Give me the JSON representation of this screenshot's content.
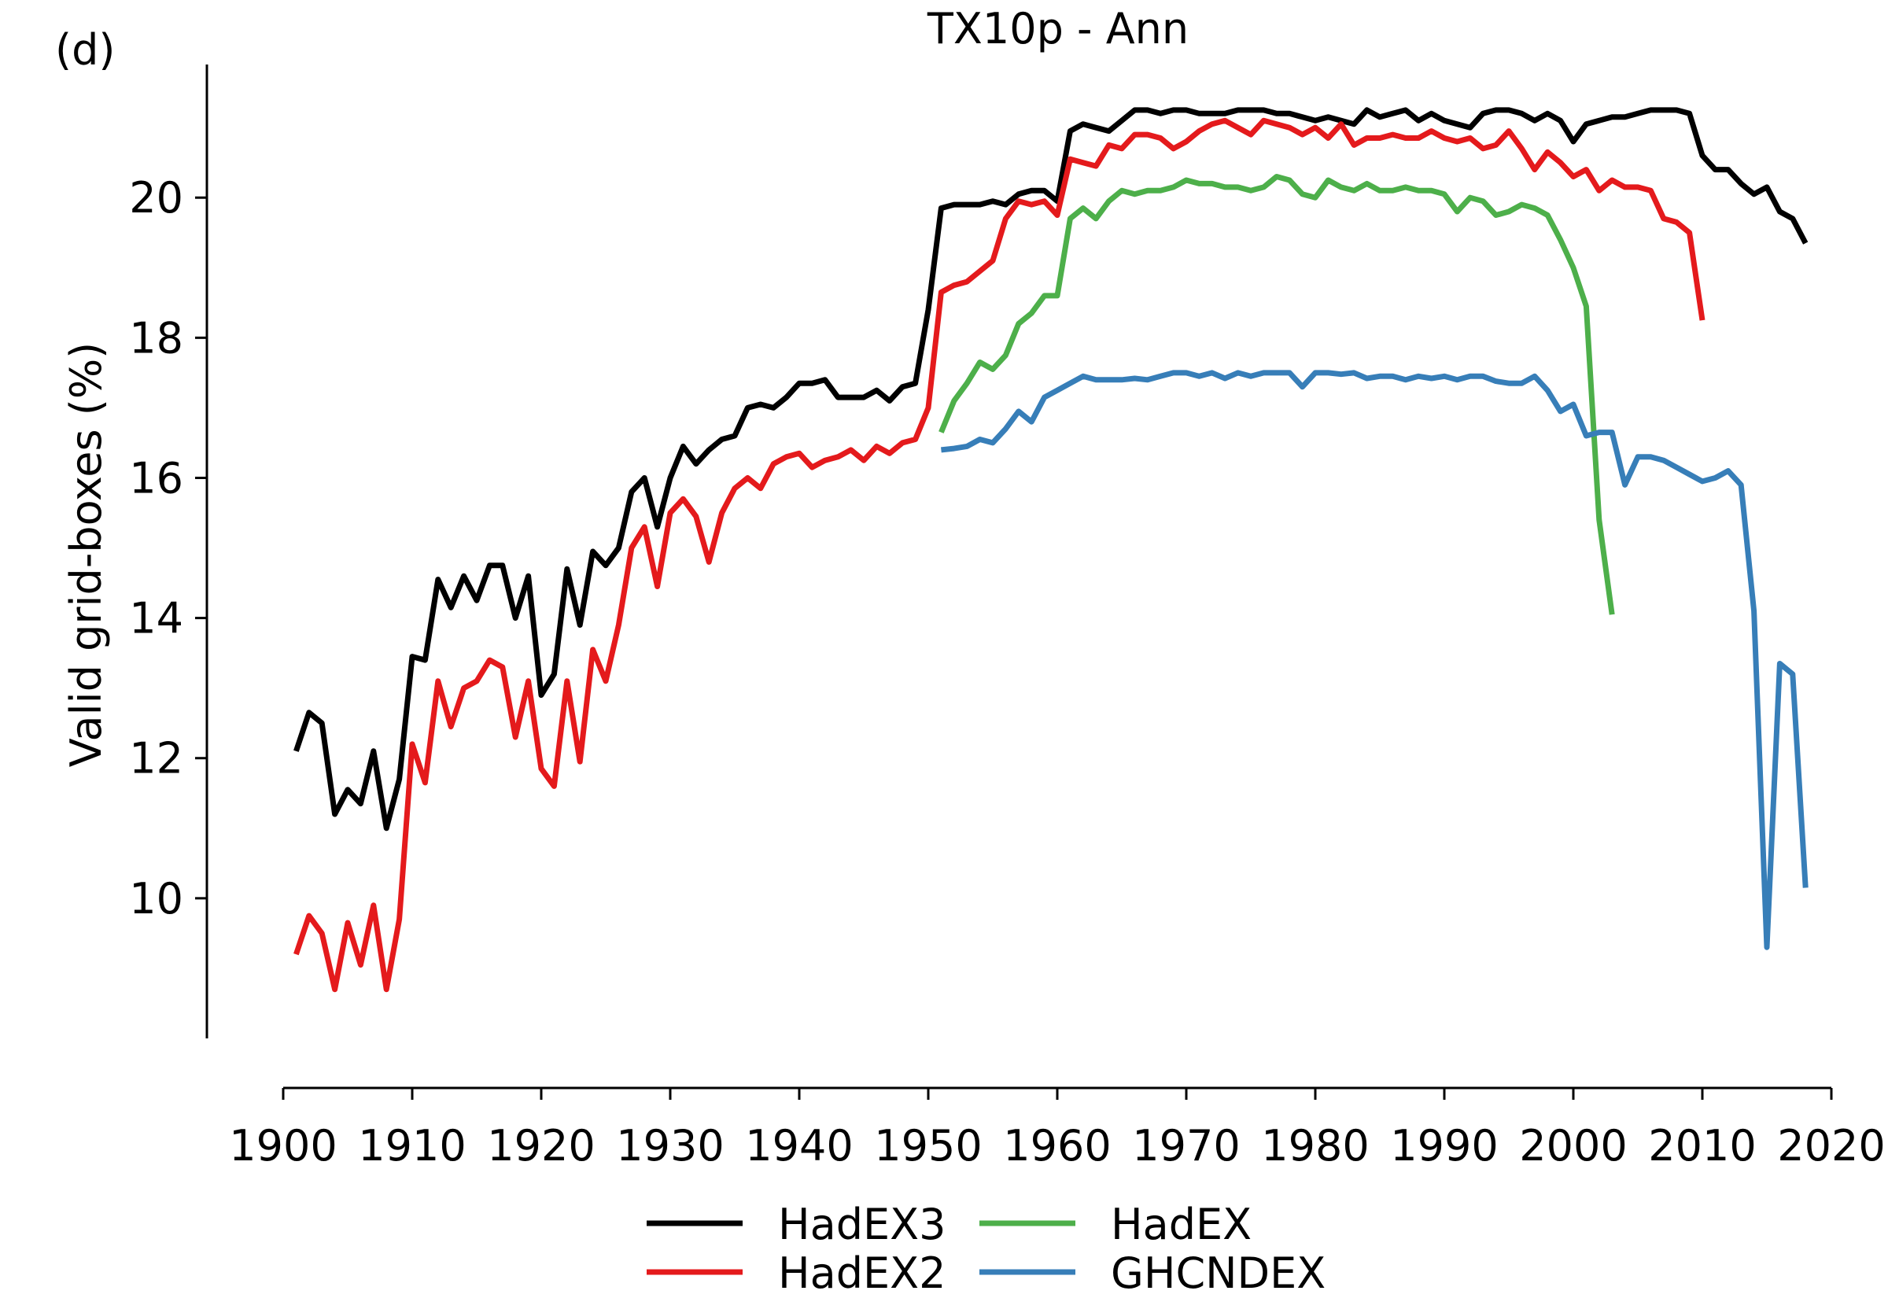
{
  "panel_label": "(d)",
  "chart_data": {
    "type": "line",
    "title": "TX10p - Ann",
    "xlabel": "",
    "ylabel": "Valid grid-boxes (%)",
    "xlim": [
      1900,
      2020
    ],
    "ylim": [
      8.0,
      21.9
    ],
    "xticks": [
      1900,
      1910,
      1920,
      1930,
      1940,
      1950,
      1960,
      1970,
      1980,
      1990,
      2000,
      2010,
      2020
    ],
    "yticks": [
      10,
      12,
      14,
      16,
      18,
      20
    ],
    "grid": false,
    "legend_position": "bottom",
    "series": [
      {
        "name": "HadEX3",
        "color": "#000000",
        "x": [
          1901,
          1902,
          1903,
          1904,
          1905,
          1906,
          1907,
          1908,
          1909,
          1910,
          1911,
          1912,
          1913,
          1914,
          1915,
          1916,
          1917,
          1918,
          1919,
          1920,
          1921,
          1922,
          1923,
          1924,
          1925,
          1926,
          1927,
          1928,
          1929,
          1930,
          1931,
          1932,
          1933,
          1934,
          1935,
          1936,
          1937,
          1938,
          1939,
          1940,
          1941,
          1942,
          1943,
          1944,
          1945,
          1946,
          1947,
          1948,
          1949,
          1950,
          1951,
          1952,
          1953,
          1954,
          1955,
          1956,
          1957,
          1958,
          1959,
          1960,
          1961,
          1962,
          1963,
          1964,
          1965,
          1966,
          1967,
          1968,
          1969,
          1970,
          1971,
          1972,
          1973,
          1974,
          1975,
          1976,
          1977,
          1978,
          1979,
          1980,
          1981,
          1982,
          1983,
          1984,
          1985,
          1986,
          1987,
          1988,
          1989,
          1990,
          1991,
          1992,
          1993,
          1994,
          1995,
          1996,
          1997,
          1998,
          1999,
          2000,
          2001,
          2002,
          2003,
          2004,
          2005,
          2006,
          2007,
          2008,
          2009,
          2010,
          2011,
          2012,
          2013,
          2014,
          2015,
          2016,
          2017,
          2018
        ],
        "y": [
          12.1,
          12.65,
          12.5,
          11.2,
          11.55,
          11.35,
          12.1,
          11.0,
          11.7,
          13.45,
          13.4,
          14.55,
          14.15,
          14.6,
          14.25,
          14.75,
          14.75,
          14.0,
          14.6,
          12.9,
          13.2,
          14.7,
          13.9,
          14.95,
          14.75,
          15.0,
          15.8,
          16.0,
          15.3,
          16.0,
          16.45,
          16.2,
          16.4,
          16.55,
          16.6,
          17.0,
          17.05,
          17.0,
          17.15,
          17.35,
          17.35,
          17.4,
          17.15,
          17.15,
          17.15,
          17.25,
          17.1,
          17.3,
          17.35,
          18.4,
          19.85,
          19.9,
          19.9,
          19.9,
          19.95,
          19.9,
          20.05,
          20.1,
          20.1,
          19.95,
          20.95,
          21.05,
          21.0,
          20.95,
          21.1,
          21.25,
          21.25,
          21.2,
          21.25,
          21.25,
          21.2,
          21.2,
          21.2,
          21.25,
          21.25,
          21.25,
          21.2,
          21.2,
          21.15,
          21.1,
          21.15,
          21.1,
          21.05,
          21.25,
          21.15,
          21.2,
          21.25,
          21.1,
          21.2,
          21.1,
          21.05,
          21.0,
          21.2,
          21.25,
          21.25,
          21.2,
          21.1,
          21.2,
          21.1,
          20.8,
          21.05,
          21.1,
          21.15,
          21.15,
          21.2,
          21.25,
          21.25,
          21.25,
          21.2,
          20.6,
          20.4,
          20.4,
          20.2,
          20.05,
          20.15,
          19.8,
          19.7,
          19.35
        ]
      },
      {
        "name": "HadEX2",
        "color": "#e41a1c",
        "x": [
          1901,
          1902,
          1903,
          1904,
          1905,
          1906,
          1907,
          1908,
          1909,
          1910,
          1911,
          1912,
          1913,
          1914,
          1915,
          1916,
          1917,
          1918,
          1919,
          1920,
          1921,
          1922,
          1923,
          1924,
          1925,
          1926,
          1927,
          1928,
          1929,
          1930,
          1931,
          1932,
          1933,
          1934,
          1935,
          1936,
          1937,
          1938,
          1939,
          1940,
          1941,
          1942,
          1943,
          1944,
          1945,
          1946,
          1947,
          1948,
          1949,
          1950,
          1951,
          1952,
          1953,
          1954,
          1955,
          1956,
          1957,
          1958,
          1959,
          1960,
          1961,
          1962,
          1963,
          1964,
          1965,
          1966,
          1967,
          1968,
          1969,
          1970,
          1971,
          1972,
          1973,
          1974,
          1975,
          1976,
          1977,
          1978,
          1979,
          1980,
          1981,
          1982,
          1983,
          1984,
          1985,
          1986,
          1987,
          1988,
          1989,
          1990,
          1991,
          1992,
          1993,
          1994,
          1995,
          1996,
          1997,
          1998,
          1999,
          2000,
          2001,
          2002,
          2003,
          2004,
          2005,
          2006,
          2007,
          2008,
          2009,
          2010
        ],
        "y": [
          9.2,
          9.75,
          9.5,
          8.7,
          9.65,
          9.05,
          9.9,
          8.7,
          9.7,
          12.2,
          11.65,
          13.1,
          12.45,
          13.0,
          13.1,
          13.4,
          13.3,
          12.3,
          13.1,
          11.85,
          11.6,
          13.1,
          11.95,
          13.55,
          13.1,
          13.9,
          15.0,
          15.3,
          14.45,
          15.5,
          15.7,
          15.45,
          14.8,
          15.5,
          15.85,
          16.0,
          15.85,
          16.2,
          16.3,
          16.35,
          16.15,
          16.25,
          16.3,
          16.4,
          16.25,
          16.45,
          16.35,
          16.5,
          16.55,
          17.0,
          18.65,
          18.75,
          18.8,
          18.95,
          19.1,
          19.7,
          19.95,
          19.9,
          19.95,
          19.75,
          20.55,
          20.5,
          20.45,
          20.75,
          20.7,
          20.9,
          20.9,
          20.85,
          20.7,
          20.8,
          20.95,
          21.05,
          21.1,
          21.0,
          20.9,
          21.1,
          21.05,
          21.0,
          20.9,
          21.0,
          20.85,
          21.05,
          20.75,
          20.85,
          20.85,
          20.9,
          20.85,
          20.85,
          20.95,
          20.85,
          20.8,
          20.85,
          20.7,
          20.75,
          20.95,
          20.7,
          20.4,
          20.65,
          20.5,
          20.3,
          20.4,
          20.1,
          20.25,
          20.15,
          20.15,
          20.1,
          19.7,
          19.65,
          19.5,
          18.25
        ]
      },
      {
        "name": "HadEX",
        "color": "#4daf4a",
        "x": [
          1951,
          1952,
          1953,
          1954,
          1955,
          1956,
          1957,
          1958,
          1959,
          1960,
          1961,
          1962,
          1963,
          1964,
          1965,
          1966,
          1967,
          1968,
          1969,
          1970,
          1971,
          1972,
          1973,
          1974,
          1975,
          1976,
          1977,
          1978,
          1979,
          1980,
          1981,
          1982,
          1983,
          1984,
          1985,
          1986,
          1987,
          1988,
          1989,
          1990,
          1991,
          1992,
          1993,
          1994,
          1995,
          1996,
          1997,
          1998,
          1999,
          2000,
          2001,
          2002,
          2003
        ],
        "y": [
          16.65,
          17.1,
          17.35,
          17.65,
          17.55,
          17.75,
          18.2,
          18.35,
          18.6,
          18.6,
          19.7,
          19.85,
          19.7,
          19.95,
          20.1,
          20.05,
          20.1,
          20.1,
          20.15,
          20.25,
          20.2,
          20.2,
          20.15,
          20.15,
          20.1,
          20.15,
          20.3,
          20.25,
          20.05,
          20.0,
          20.25,
          20.15,
          20.1,
          20.2,
          20.1,
          20.1,
          20.15,
          20.1,
          20.1,
          20.05,
          19.8,
          20.0,
          19.95,
          19.75,
          19.8,
          19.9,
          19.85,
          19.75,
          19.4,
          19.0,
          18.45,
          15.4,
          14.05
        ]
      },
      {
        "name": "GHCNDEX",
        "color": "#377eb8",
        "x": [
          1951,
          1952,
          1953,
          1954,
          1955,
          1956,
          1957,
          1958,
          1959,
          1960,
          1961,
          1962,
          1963,
          1964,
          1965,
          1966,
          1967,
          1968,
          1969,
          1970,
          1971,
          1972,
          1973,
          1974,
          1975,
          1976,
          1977,
          1978,
          1979,
          1980,
          1981,
          1982,
          1983,
          1984,
          1985,
          1986,
          1987,
          1988,
          1989,
          1990,
          1991,
          1992,
          1993,
          1994,
          1995,
          1996,
          1997,
          1998,
          1999,
          2000,
          2001,
          2002,
          2003,
          2004,
          2005,
          2006,
          2007,
          2008,
          2009,
          2010,
          2011,
          2012,
          2013,
          2014,
          2015,
          2016,
          2017,
          2018
        ],
        "y": [
          16.4,
          16.42,
          16.45,
          16.55,
          16.5,
          16.7,
          16.95,
          16.8,
          17.15,
          17.25,
          17.35,
          17.45,
          17.4,
          17.4,
          17.4,
          17.42,
          17.4,
          17.45,
          17.5,
          17.5,
          17.45,
          17.5,
          17.42,
          17.5,
          17.45,
          17.5,
          17.5,
          17.5,
          17.3,
          17.5,
          17.5,
          17.48,
          17.5,
          17.42,
          17.45,
          17.45,
          17.4,
          17.45,
          17.42,
          17.45,
          17.4,
          17.45,
          17.45,
          17.38,
          17.35,
          17.35,
          17.45,
          17.25,
          16.95,
          17.05,
          16.6,
          16.65,
          16.65,
          15.9,
          16.3,
          16.3,
          16.25,
          16.15,
          16.05,
          15.95,
          16.0,
          16.1,
          15.9,
          14.1,
          9.3,
          13.35,
          13.2,
          10.15
        ]
      }
    ]
  }
}
